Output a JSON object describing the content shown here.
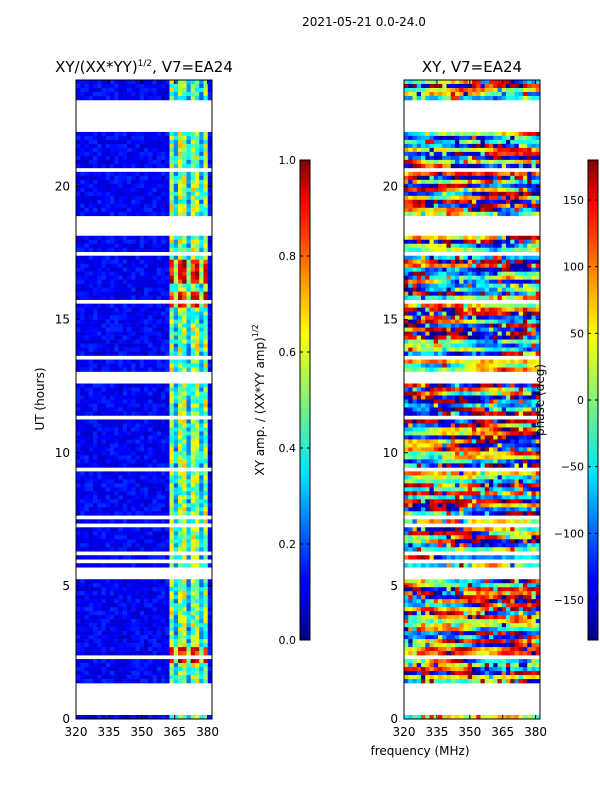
{
  "suptitle": "2021-05-21 0.0-24.0",
  "shared": {
    "ylabel": "UT (hours)",
    "xlabel": "frequency (MHz)",
    "xticks": [
      320,
      335,
      350,
      365,
      380
    ],
    "yticks": [
      0,
      5,
      10,
      15,
      20
    ],
    "xlim": [
      320,
      382
    ],
    "ylim": [
      0,
      24
    ]
  },
  "chart_data": [
    {
      "type": "heatmap",
      "title": "XY/(XX*YY)^{1/2}, V7=EA24",
      "title_main": "XY/(XX*YY)",
      "title_sup": "1/2",
      "title_tail": ", V7=EA24",
      "xlabel": "frequency (MHz)",
      "ylabel": "UT (hours)",
      "xlim": [
        320,
        382
      ],
      "ylim": [
        0,
        24
      ],
      "colorbar": {
        "label": "XY amp. / (XX*YY amp)^{1/2}",
        "label_main": "XY amp. / (XX*YY amp)",
        "label_sup": "1/2",
        "range": [
          0.0,
          1.0
        ],
        "ticks": [
          "0.0",
          "0.2",
          "0.4",
          "0.6",
          "0.8",
          "1.0"
        ],
        "tick_values": [
          0.0,
          0.2,
          0.4,
          0.6,
          0.8,
          1.0
        ],
        "colormap": "jet"
      },
      "data_gaps_hours": [
        [
          0.1,
          1.4
        ],
        [
          18.1,
          18.9
        ],
        [
          12.6,
          13.1
        ],
        [
          22.1,
          23.3
        ],
        [
          5.3,
          5.6
        ]
      ],
      "high_value_band_mhz": [
        363,
        380
      ],
      "bright_rows_hours": [
        2.4,
        15.8,
        16.6,
        17.0
      ]
    },
    {
      "type": "heatmap",
      "title": "XY, V7=EA24",
      "xlabel": "frequency (MHz)",
      "ylabel": "",
      "xlim": [
        320,
        382
      ],
      "ylim": [
        0,
        24
      ],
      "colorbar": {
        "label": "phase (deg)",
        "range": [
          -180,
          180
        ],
        "ticks": [
          "−150",
          "−100",
          "−50",
          "0",
          "50",
          "100",
          "150"
        ],
        "tick_values": [
          -150,
          -100,
          -50,
          0,
          50,
          100,
          150
        ],
        "colormap": "jet"
      },
      "data_gaps_hours": [
        [
          0.1,
          1.4
        ],
        [
          18.1,
          18.9
        ],
        [
          12.6,
          13.1
        ],
        [
          22.1,
          23.3
        ],
        [
          5.3,
          5.6
        ]
      ]
    }
  ]
}
